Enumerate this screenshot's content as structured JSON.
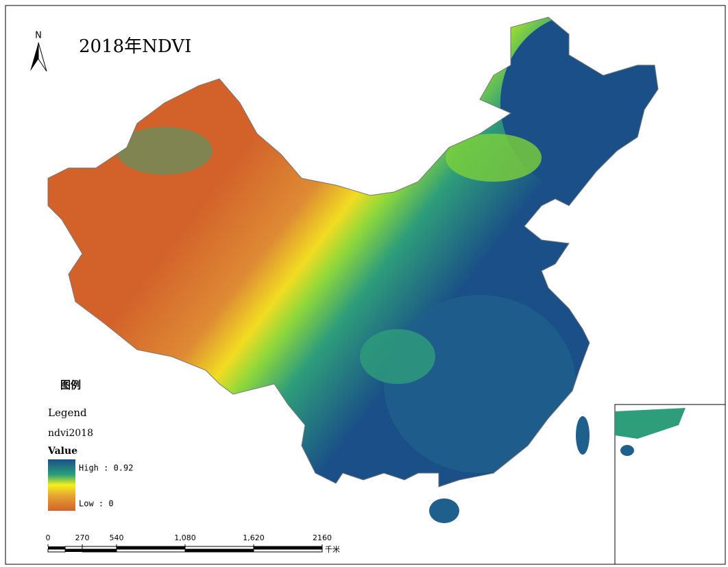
{
  "title": "2018年NDVI",
  "north_arrow": "N",
  "legend": {
    "heading": "图例",
    "title": "Legend",
    "layer": "ndvi2018",
    "field": "Value",
    "high": "High : 0.92",
    "low": "Low : 0"
  },
  "scale_bar": {
    "ticks": [
      0,
      270,
      540,
      {
        "value": 1080,
        "label": "1,080"
      },
      {
        "value": 1620,
        "label": "1,620"
      },
      2160
    ],
    "unit": "千米"
  }
}
